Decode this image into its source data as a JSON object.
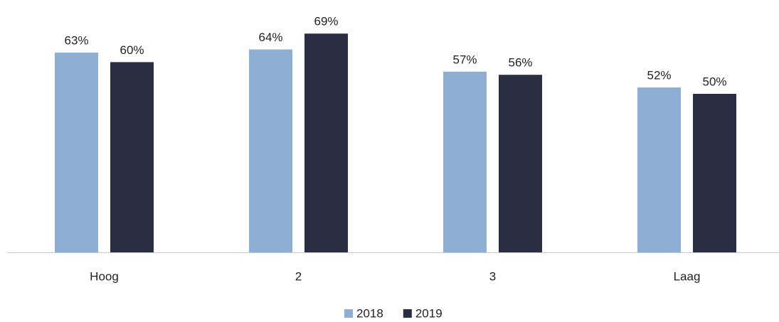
{
  "chart_data": {
    "type": "bar",
    "categories": [
      "Hoog",
      "2",
      "3",
      "Laag"
    ],
    "series": [
      {
        "name": "2018",
        "color": "#8eaed3",
        "values": [
          63,
          64,
          57,
          52
        ],
        "value_labels": [
          "63%",
          "64%",
          "57%",
          "52%"
        ]
      },
      {
        "name": "2019",
        "color": "#2a2e43",
        "values": [
          60,
          69,
          56,
          50
        ],
        "value_labels": [
          "60%",
          "69%",
          "56%",
          "50%"
        ]
      }
    ],
    "legend": "bottom"
  }
}
